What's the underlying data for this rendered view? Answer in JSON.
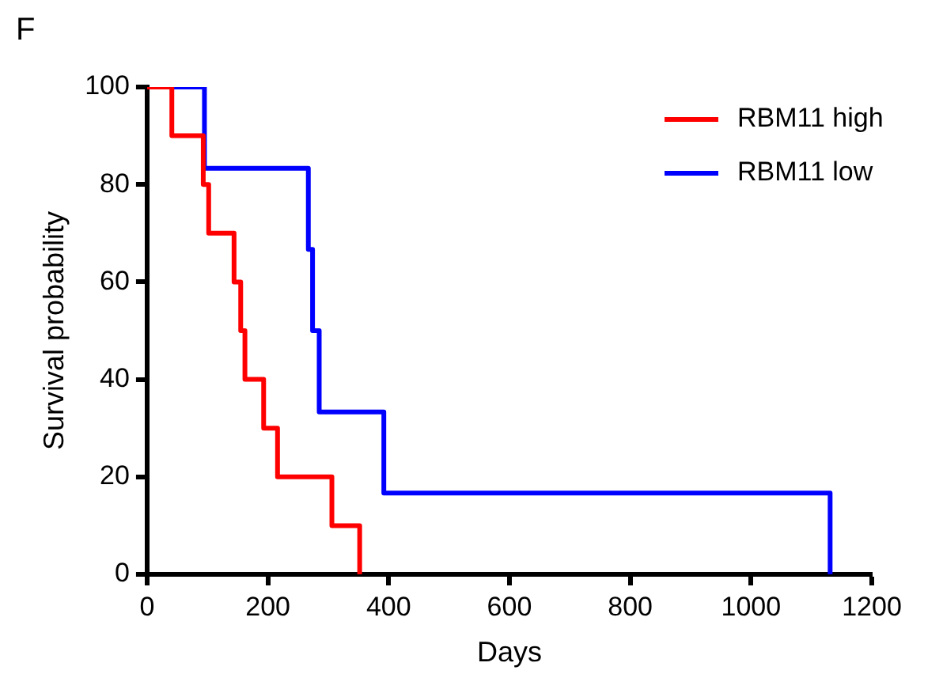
{
  "chart_data": {
    "type": "step",
    "title": "F",
    "xlabel": "Days",
    "ylabel": "Survival probability",
    "xlim": [
      0,
      1200
    ],
    "xticks": [
      0,
      200,
      400,
      600,
      800,
      1000,
      1200
    ],
    "ylim": [
      0,
      100
    ],
    "yticks": [
      0,
      20,
      40,
      60,
      80,
      100
    ],
    "grid": false,
    "legend": "top right",
    "marker": "none",
    "line_style": "solid",
    "series": [
      {
        "name": "RBM11 high",
        "color": "#ff0000",
        "x": [
          0,
          41,
          93,
          102,
          144,
          155,
          162,
          193,
          216,
          306,
          352
        ],
        "values": [
          100,
          90,
          80,
          70,
          60,
          50,
          40,
          30,
          20,
          10,
          0
        ]
      },
      {
        "name": "RBM11 low",
        "color": "#0000ff",
        "x": [
          0,
          95,
          267,
          274,
          285,
          392,
          1131
        ],
        "values": [
          100,
          83.3,
          66.7,
          50,
          33.3,
          16.7,
          0
        ]
      }
    ]
  }
}
